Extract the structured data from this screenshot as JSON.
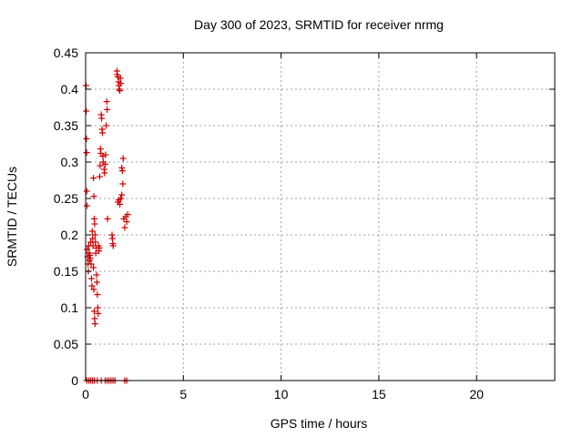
{
  "chart_data": {
    "type": "scatter",
    "title": "Day 300 of 2023, SRMTID for receiver nrmg",
    "xlabel": "GPS time / hours",
    "ylabel": "SRMTID / TECUs",
    "xlim": [
      0,
      24
    ],
    "ylim": [
      0,
      0.45
    ],
    "xticks": [
      0,
      5,
      10,
      15,
      20
    ],
    "xtick_labels": [
      "0",
      "5",
      "10",
      "15",
      "20"
    ],
    "yticks": [
      0,
      0.05,
      0.1,
      0.15,
      0.2,
      0.25,
      0.3,
      0.35,
      0.4,
      0.45
    ],
    "ytick_labels": [
      "0",
      "0.05",
      "0.1",
      "0.15",
      "0.2",
      "0.25",
      "0.3",
      "0.35",
      "0.4",
      "0.45"
    ],
    "grid": true,
    "marker": "+",
    "color": "#cc0000",
    "series": [
      {
        "name": "SRMTID",
        "points": [
          [
            0.02,
            0.405
          ],
          [
            0.03,
            0.37
          ],
          [
            0.04,
            0.332
          ],
          [
            0.05,
            0.313
          ],
          [
            0.06,
            0.26
          ],
          [
            0.07,
            0.24
          ],
          [
            0.08,
            0.18
          ],
          [
            0.1,
            0.17
          ],
          [
            0.12,
            0.16
          ],
          [
            0.14,
            0.15
          ],
          [
            0.16,
            0.185
          ],
          [
            0.18,
            0.175
          ],
          [
            0.2,
            0.165
          ],
          [
            0.22,
            0.172
          ],
          [
            0.24,
            0.168
          ],
          [
            0.26,
            0.19
          ],
          [
            0.28,
            0.16
          ],
          [
            0.3,
            0.14
          ],
          [
            0.32,
            0.13
          ],
          [
            0.34,
            0.205
          ],
          [
            0.36,
            0.195
          ],
          [
            0.38,
            0.185
          ],
          [
            0.4,
            0.155
          ],
          [
            0.42,
            0.125
          ],
          [
            0.44,
            0.095
          ],
          [
            0.46,
            0.085
          ],
          [
            0.48,
            0.078
          ],
          [
            0.4,
            0.278
          ],
          [
            0.42,
            0.253
          ],
          [
            0.44,
            0.222
          ],
          [
            0.46,
            0.215
          ],
          [
            0.48,
            0.2
          ],
          [
            0.5,
            0.19
          ],
          [
            0.52,
            0.175
          ],
          [
            0.54,
            0.182
          ],
          [
            0.56,
            0.145
          ],
          [
            0.58,
            0.135
          ],
          [
            0.6,
            0.118
          ],
          [
            0.62,
            0.1
          ],
          [
            0.64,
            0.092
          ],
          [
            0.66,
            0.185
          ],
          [
            0.68,
            0.178
          ],
          [
            0.7,
            0.182
          ],
          [
            0.72,
            0.28
          ],
          [
            0.74,
            0.295
          ],
          [
            0.76,
            0.318
          ],
          [
            0.78,
            0.312
          ],
          [
            0.8,
            0.365
          ],
          [
            0.82,
            0.36
          ],
          [
            0.84,
            0.345
          ],
          [
            0.86,
            0.34
          ],
          [
            0.88,
            0.308
          ],
          [
            0.9,
            0.3
          ],
          [
            0.95,
            0.29
          ],
          [
            0.97,
            0.285
          ],
          [
            1.0,
            0.297
          ],
          [
            1.02,
            0.31
          ],
          [
            1.05,
            0.35
          ],
          [
            1.08,
            0.383
          ],
          [
            1.1,
            0.372
          ],
          [
            1.12,
            0.222
          ],
          [
            1.35,
            0.2
          ],
          [
            1.37,
            0.195
          ],
          [
            1.39,
            0.188
          ],
          [
            1.41,
            0.185
          ],
          [
            1.6,
            0.425
          ],
          [
            1.62,
            0.42
          ],
          [
            1.65,
            0.417
          ],
          [
            1.68,
            0.41
          ],
          [
            1.7,
            0.405
          ],
          [
            1.72,
            0.4
          ],
          [
            1.75,
            0.398
          ],
          [
            1.78,
            0.415
          ],
          [
            1.8,
            0.408
          ],
          [
            1.65,
            0.245
          ],
          [
            1.7,
            0.248
          ],
          [
            1.75,
            0.242
          ],
          [
            1.8,
            0.25
          ],
          [
            1.85,
            0.255
          ],
          [
            1.9,
            0.27
          ],
          [
            1.85,
            0.292
          ],
          [
            1.88,
            0.288
          ],
          [
            1.92,
            0.305
          ],
          [
            1.95,
            0.222
          ],
          [
            2.0,
            0.21
          ],
          [
            2.05,
            0.225
          ],
          [
            2.1,
            0.218
          ],
          [
            2.15,
            0.228
          ],
          [
            0.05,
            0.0
          ],
          [
            0.15,
            0.0
          ],
          [
            0.25,
            0.0
          ],
          [
            0.35,
            0.0
          ],
          [
            0.45,
            0.0
          ],
          [
            0.6,
            0.0
          ],
          [
            0.8,
            0.0
          ],
          [
            1.0,
            0.0
          ],
          [
            1.1,
            0.0
          ],
          [
            1.2,
            0.0
          ],
          [
            1.3,
            0.0
          ],
          [
            1.4,
            0.0
          ],
          [
            1.5,
            0.0
          ],
          [
            2.0,
            0.0
          ],
          [
            2.1,
            0.0
          ]
        ]
      }
    ]
  }
}
